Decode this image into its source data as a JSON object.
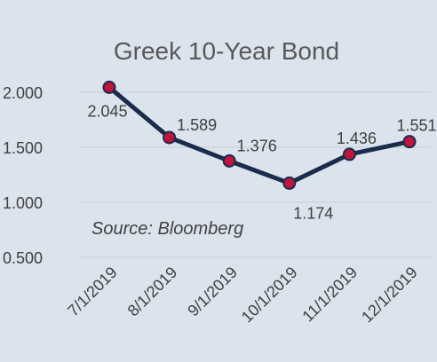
{
  "chart_data": {
    "type": "line",
    "title": "Greek 10-Year Bond",
    "annotation": "Source: Bloomberg",
    "categories": [
      "7/1/2019",
      "8/1/2019",
      "9/1/2019",
      "10/1/2019",
      "11/1/2019",
      "12/1/2019"
    ],
    "series": [
      {
        "values": [
          2.045,
          1.589,
          1.376,
          1.174,
          1.436,
          1.551
        ],
        "data_labels": [
          "2.045",
          "1.589",
          "1.376",
          "1.174",
          "1.436",
          "1.551"
        ]
      }
    ],
    "yticks": [
      "0.500",
      "1.000",
      "1.500",
      "2.000"
    ],
    "ylim": [
      0.5,
      2.0
    ],
    "grid": true,
    "legend": "none",
    "colors": {
      "background": "#dbe3ec",
      "line": "#1a2b4c",
      "marker": "#c0143c",
      "grid": "#c5ced8",
      "text": "#404040",
      "title": "#595959"
    }
  }
}
